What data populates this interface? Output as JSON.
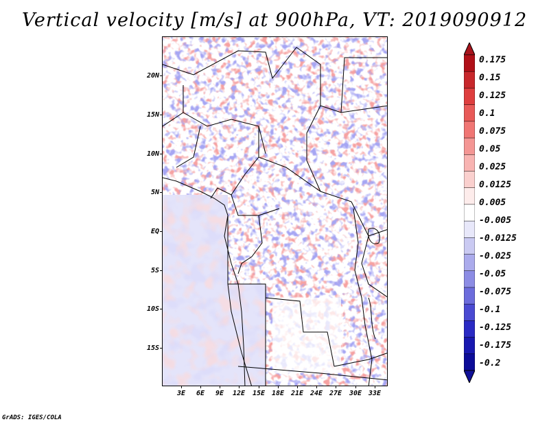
{
  "title": "Vertical velocity [m/s] at 900hPa, VT: 2019090912",
  "credit": "GrADS: IGES/COLA",
  "map": {
    "lon_range": [
      0,
      35
    ],
    "lat_range": [
      -20,
      25
    ],
    "lat_labels": [
      "20N",
      "15N",
      "10N",
      "5N",
      "EQ",
      "5S",
      "10S",
      "15S"
    ],
    "lat_values": [
      20,
      15,
      10,
      5,
      0,
      -5,
      -10,
      -15
    ],
    "lon_labels": [
      "3E",
      "6E",
      "9E",
      "12E",
      "15E",
      "18E",
      "21E",
      "24E",
      "27E",
      "30E",
      "33E"
    ],
    "lon_values": [
      3,
      6,
      9,
      12,
      15,
      18,
      21,
      24,
      27,
      30,
      33
    ]
  },
  "colorbar": {
    "labels": [
      "0.175",
      "0.15",
      "0.125",
      "0.1",
      "0.075",
      "0.05",
      "0.025",
      "0.0125",
      "0.005",
      "-0.005",
      "-0.0125",
      "-0.025",
      "-0.05",
      "-0.075",
      "-0.1",
      "-0.125",
      "-0.175",
      "-0.2"
    ],
    "colors": [
      "#b01018",
      "#c8282c",
      "#de3e3e",
      "#e85a58",
      "#f07674",
      "#f49694",
      "#f8b4b2",
      "#fad0ce",
      "#fdeceb",
      "#ffffff",
      "#e8e8fa",
      "#cacaf2",
      "#ababec",
      "#8c8ce4",
      "#6c6cdc",
      "#4a4ad2",
      "#2a2ac4",
      "#1818b0",
      "#0c0c98"
    ],
    "top_color": "#a8141c",
    "bottom_color": "#101098"
  },
  "colors": {
    "positive": "#e8605c",
    "negative": "#5a5ae0",
    "border": "#000000"
  }
}
